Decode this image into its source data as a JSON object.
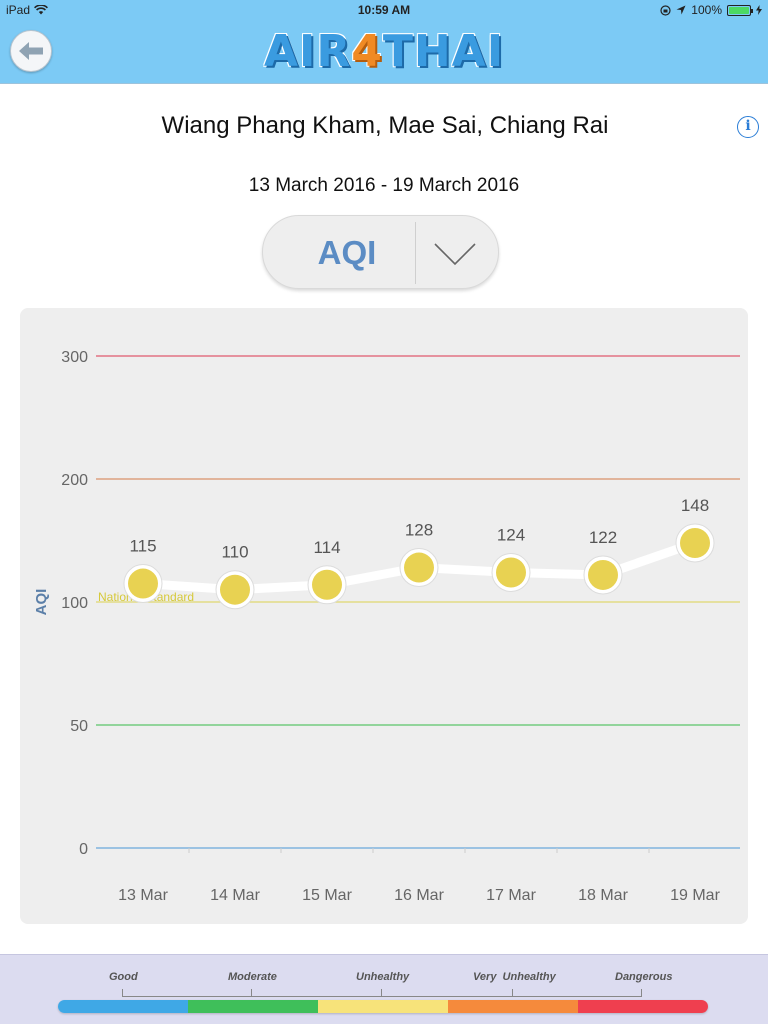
{
  "status_bar": {
    "device": "iPad",
    "time": "10:59 AM",
    "battery": "100%"
  },
  "header": {
    "logo_prefix": "AIR",
    "logo_four": "4",
    "logo_suffix": "THAI"
  },
  "station": "Wiang Phang Kham, Mae Sai, Chiang Rai",
  "date_range": "13 March 2016 - 19 March 2016",
  "parameter": {
    "selected": "AQI"
  },
  "icons": {
    "back": "back-arrow-icon",
    "info": "info-icon",
    "dropdown": "chevron-down-icon"
  },
  "chart_data": {
    "type": "line",
    "ylabel": "AQI",
    "y_ticks": [
      0,
      50,
      100,
      200,
      300
    ],
    "categories": [
      "13 Mar",
      "14 Mar",
      "15 Mar",
      "16 Mar",
      "17 Mar",
      "18 Mar",
      "19 Mar"
    ],
    "series": [
      {
        "values": [
          115,
          110,
          114,
          128,
          124,
          122,
          148
        ],
        "color": "#e8d252"
      }
    ],
    "threshold_lines": [
      {
        "value": 300,
        "color": "#e05a6e"
      },
      {
        "value": 200,
        "color": "#d9916a"
      },
      {
        "value": 100,
        "color": "#e0d870",
        "label": "National Standard"
      },
      {
        "value": 50,
        "color": "#5cc46a"
      },
      {
        "value": 0,
        "color": "#6aa9dc"
      }
    ],
    "grid": true
  },
  "legend": {
    "levels": [
      {
        "label": "Good"
      },
      {
        "label": "Moderate"
      },
      {
        "label": "Unhealthy"
      },
      {
        "label": "Very  Unhealthy"
      },
      {
        "label": "Dangerous"
      }
    ],
    "colors": [
      "#3fa8e6",
      "#3fbf5a",
      "#f7e37a",
      "#f58a3c",
      "#ef3f4f"
    ]
  }
}
